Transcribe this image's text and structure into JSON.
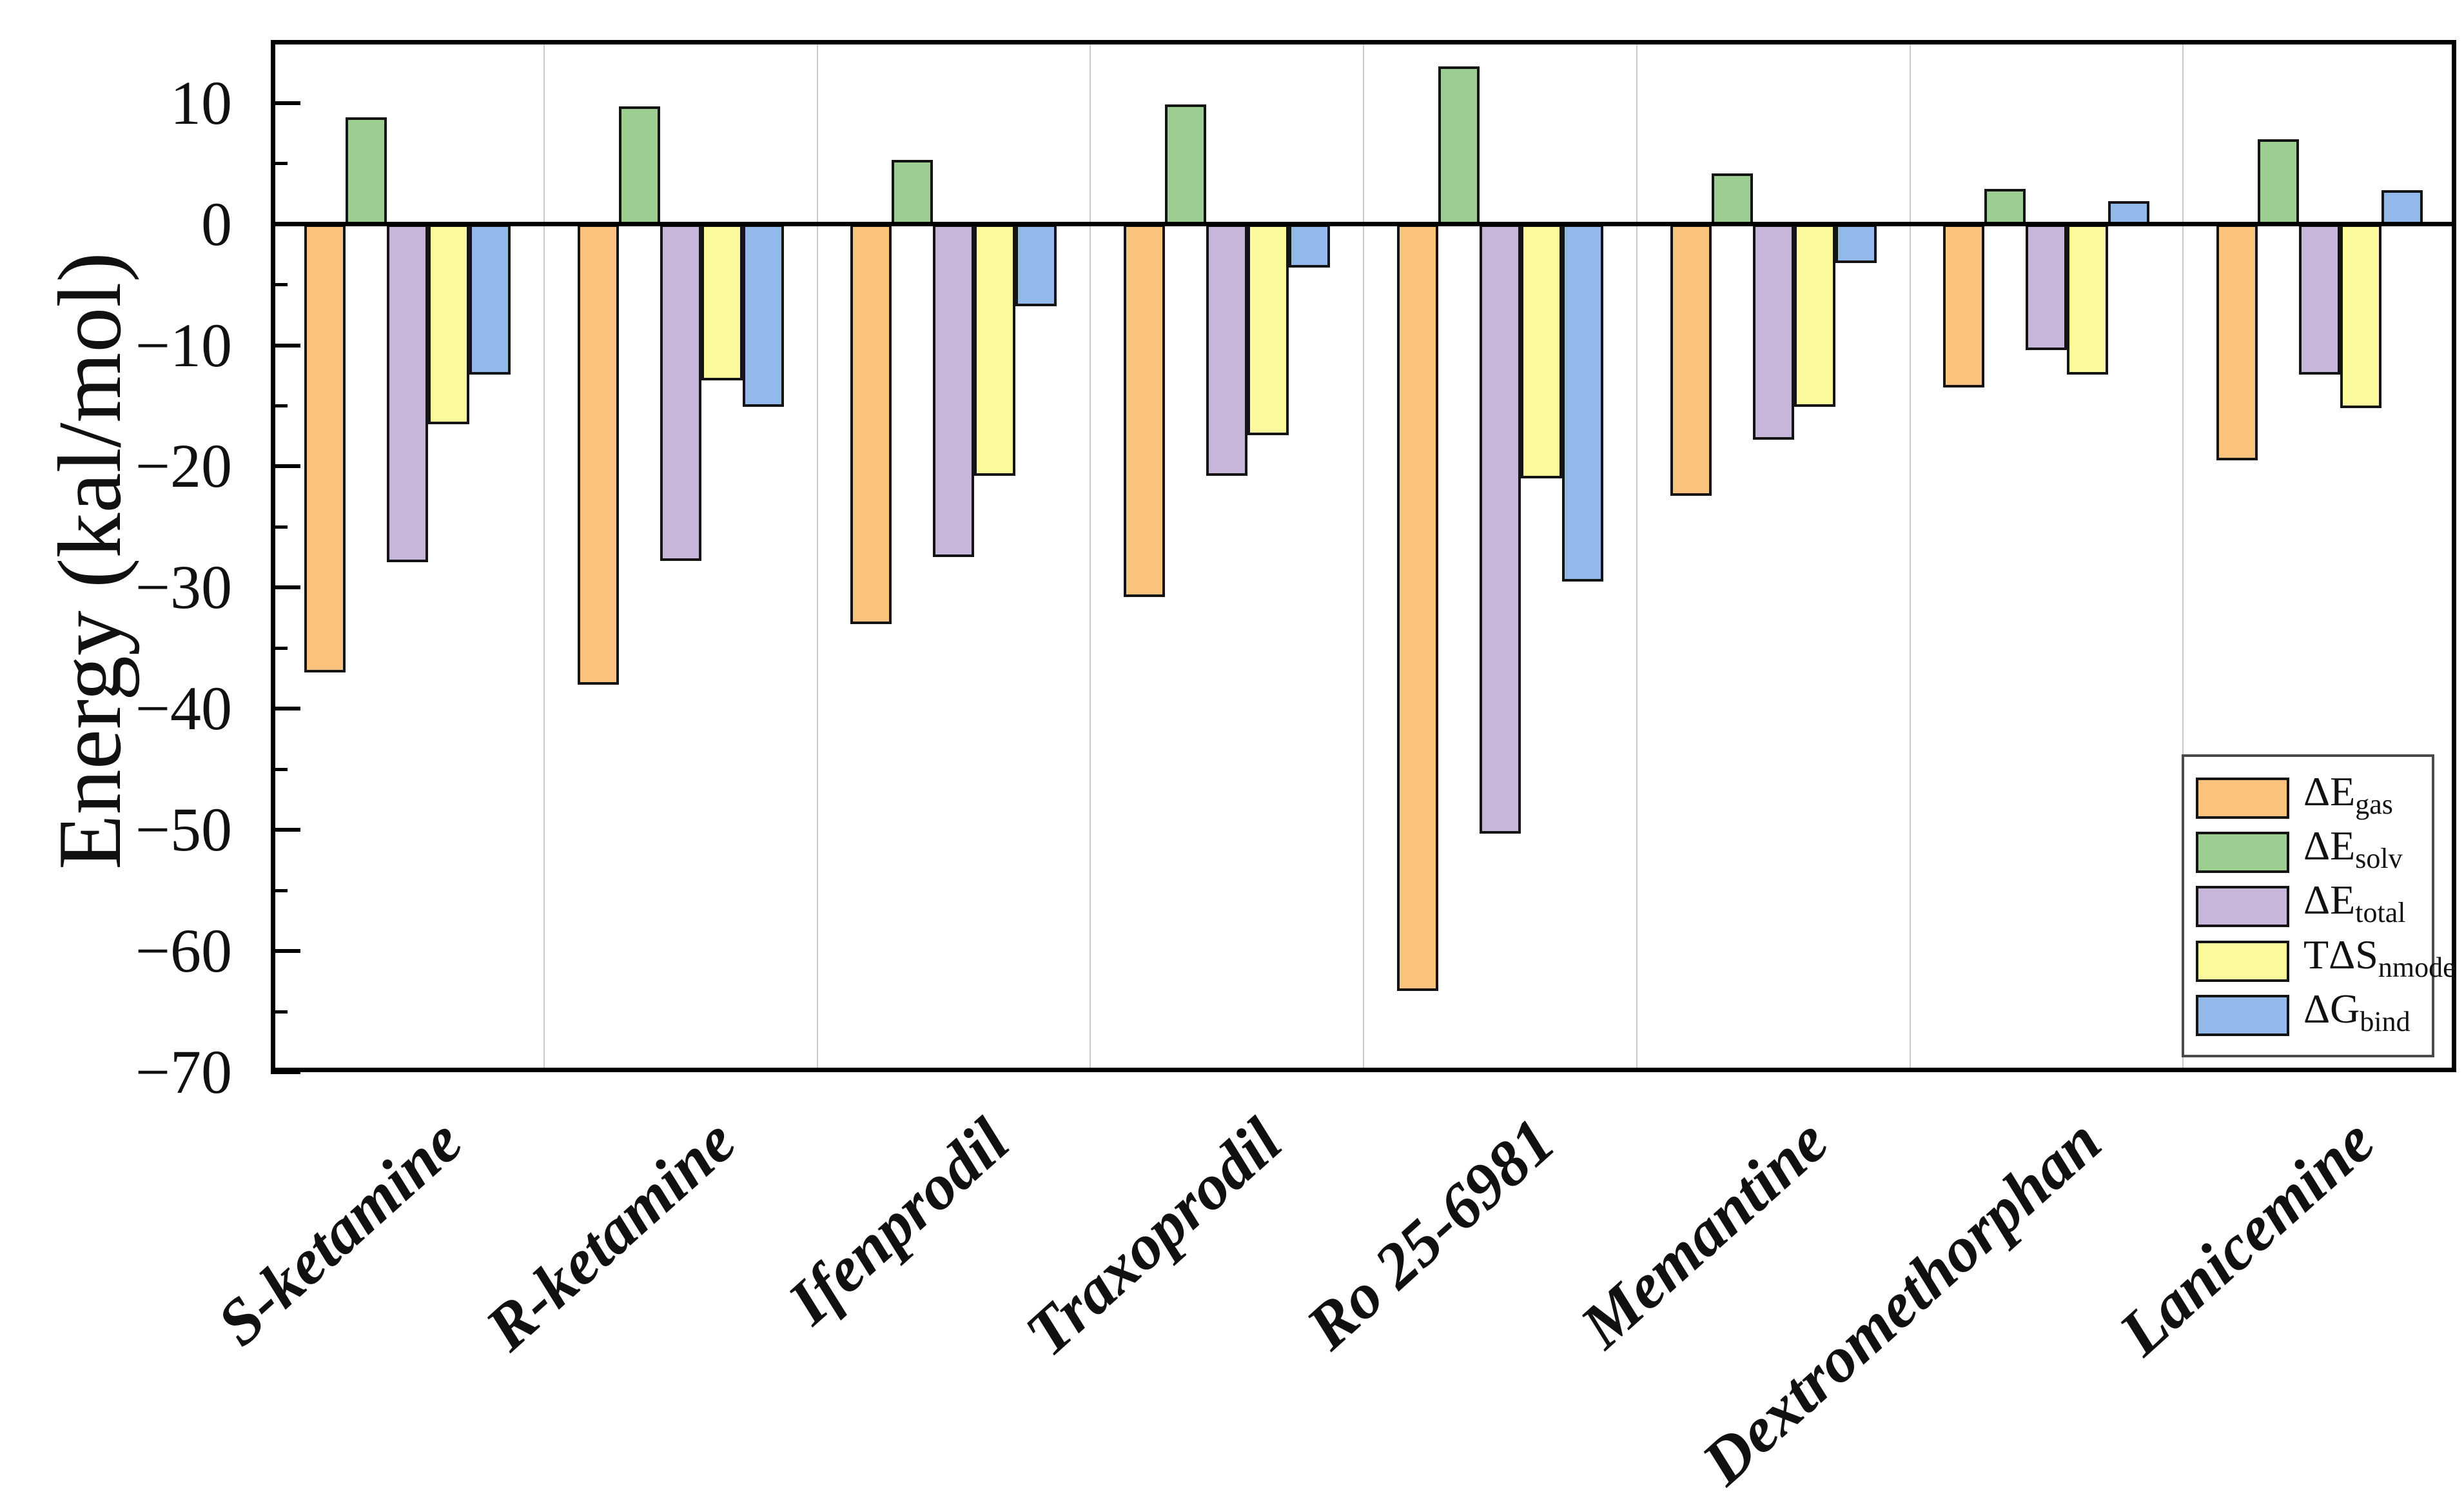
{
  "chart_data": {
    "type": "bar",
    "title": "",
    "xlabel": "",
    "ylabel": "Energy (kal/mol)",
    "ylim": [
      -70,
      15.2
    ],
    "grid": {
      "vertical_separators": true,
      "horizontal": false,
      "color": "#c9c9c9"
    },
    "zero_line": true,
    "legend_position": "lower-right",
    "frame_color": "#000000",
    "bar_outline_color": "#141414",
    "categories": [
      "S-ketamine",
      "R-ketamine",
      "Ifenprodil",
      "Traxoprodil",
      "Ro 25-6981",
      "Memantine",
      "Dextromethorphan",
      "Lanicemine"
    ],
    "series": [
      {
        "key": "dE-gas",
        "name": "ΔEgas",
        "label_main": "ΔE",
        "label_sub": "gas",
        "color": "#FBC27E",
        "values": [
          -37.0,
          -38.0,
          -33.0,
          -30.8,
          -63.3,
          -22.4,
          -13.5,
          -19.5
        ]
      },
      {
        "key": "dE-solv",
        "name": "ΔEsolv",
        "label_main": "ΔE",
        "label_sub": "solv",
        "color": "#9BCE90",
        "values": [
          8.8,
          9.7,
          5.3,
          9.9,
          13.0,
          4.2,
          2.9,
          7.0
        ]
      },
      {
        "key": "dE-total",
        "name": "ΔEtotal",
        "label_main": "ΔE",
        "label_sub": "total",
        "color": "#C8B6DA",
        "values": [
          -27.9,
          -27.8,
          -27.5,
          -20.8,
          -50.3,
          -17.8,
          -10.4,
          -12.4
        ]
      },
      {
        "key": "TdS-nmode",
        "name": "TΔSnmode",
        "label_main": "TΔS",
        "label_sub": "nmode",
        "color": "#FBFB9D",
        "values": [
          -16.5,
          -12.9,
          -20.8,
          -17.4,
          -21.0,
          -15.1,
          -12.4,
          -15.2
        ]
      },
      {
        "key": "dG-bind",
        "name": "ΔGbind",
        "label_main": "ΔG",
        "label_sub": "bind",
        "color": "#93B9EB",
        "values": [
          -12.4,
          -15.1,
          -6.8,
          -3.6,
          -29.5,
          -3.2,
          1.9,
          2.8
        ]
      }
    ],
    "y_axis": {
      "major_tick_values": [
        10,
        0,
        -10,
        -20,
        -30,
        -40,
        -50,
        -60,
        -70
      ],
      "major_tick_labels": [
        "10",
        "0",
        "−10",
        "−20",
        "−30",
        "−40",
        "−50",
        "−60",
        "−70"
      ],
      "minor_tick_values": [
        15,
        5,
        -5,
        -15,
        -25,
        -35,
        -45,
        -55,
        -65
      ]
    }
  }
}
